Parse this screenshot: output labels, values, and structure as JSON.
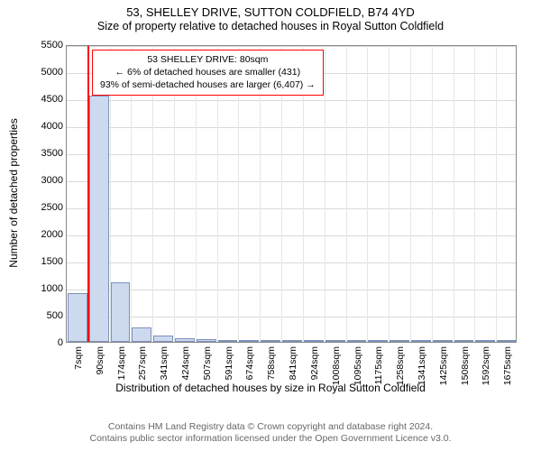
{
  "titles": {
    "line1": "53, SHELLEY DRIVE, SUTTON COLDFIELD, B74 4YD",
    "line2": "Size of property relative to detached houses in Royal Sutton Coldfield"
  },
  "chart": {
    "type": "bar",
    "x_axis_title": "Distribution of detached houses by size in Royal Sutton Coldfield",
    "y_axis_title": "Number of detached properties",
    "ylim": [
      0,
      5500
    ],
    "ytick_step": 500,
    "yticks_labels": [
      "0",
      "500",
      "1000",
      "1500",
      "2000",
      "2500",
      "3000",
      "3500",
      "4000",
      "4500",
      "5000",
      "5500"
    ],
    "x_categories": [
      "7sqm",
      "90sqm",
      "174sqm",
      "257sqm",
      "341sqm",
      "424sqm",
      "507sqm",
      "591sqm",
      "674sqm",
      "758sqm",
      "841sqm",
      "924sqm",
      "1008sqm",
      "1095sqm",
      "1175sqm",
      "1258sqm",
      "1341sqm",
      "1425sqm",
      "1508sqm",
      "1592sqm",
      "1675sqm"
    ],
    "values": [
      900,
      4550,
      1100,
      260,
      120,
      70,
      50,
      35,
      25,
      18,
      14,
      11,
      9,
      8,
      7,
      6,
      5,
      4,
      3,
      2,
      2
    ],
    "bar_fill": "#cdd9ee",
    "bar_border": "#7d92b8",
    "grid_color_h": "#d9d9d9",
    "grid_color_v": "#e6e6e6",
    "plot_border": "#888888",
    "background_color": "#ffffff",
    "highlight": {
      "x_index": 1,
      "color": "#ff0000",
      "position_in_bin": 0.0
    }
  },
  "annotation": {
    "lines": [
      "53 SHELLEY DRIVE: 80sqm",
      "← 6% of detached houses are smaller (431)",
      "93% of semi-detached houses are larger (6,407) →"
    ],
    "border_color": "#ff0000",
    "background": "#ffffff"
  },
  "attribution": {
    "line1": "Contains HM Land Registry data © Crown copyright and database right 2024.",
    "line2": "Contains public sector information licensed under the Open Government Licence v3.0."
  }
}
